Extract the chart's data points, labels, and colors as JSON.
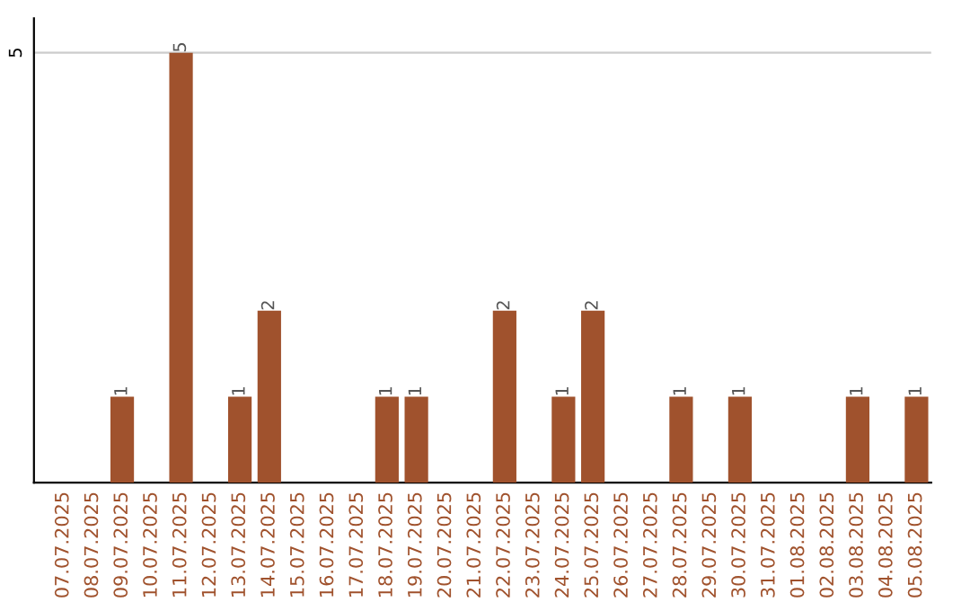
{
  "chart_data": {
    "type": "bar",
    "categories": [
      "07.07.2025",
      "08.07.2025",
      "09.07.2025",
      "10.07.2025",
      "11.07.2025",
      "12.07.2025",
      "13.07.2025",
      "14.07.2025",
      "15.07.2025",
      "16.07.2025",
      "17.07.2025",
      "18.07.2025",
      "19.07.2025",
      "20.07.2025",
      "21.07.2025",
      "22.07.2025",
      "23.07.2025",
      "24.07.2025",
      "25.07.2025",
      "26.07.2025",
      "27.07.2025",
      "28.07.2025",
      "29.07.2025",
      "30.07.2025",
      "31.07.2025",
      "01.08.2025",
      "02.08.2025",
      "03.08.2025",
      "04.08.2025",
      "05.08.2025"
    ],
    "values": [
      0,
      0,
      1,
      0,
      5,
      0,
      1,
      2,
      0,
      0,
      0,
      1,
      1,
      0,
      0,
      2,
      0,
      1,
      2,
      0,
      0,
      1,
      0,
      1,
      0,
      0,
      0,
      1,
      0,
      1
    ],
    "value_labels": [
      null,
      null,
      "1",
      null,
      "5",
      null,
      "1",
      "2",
      null,
      null,
      null,
      "1",
      "1",
      null,
      null,
      "2",
      null,
      "1",
      "2",
      null,
      null,
      "1",
      null,
      "1",
      null,
      null,
      null,
      "1",
      null,
      "1"
    ],
    "color": "#a0522d",
    "ylim": [
      0,
      5.4
    ],
    "yticks": [
      5
    ],
    "grid": "y"
  }
}
